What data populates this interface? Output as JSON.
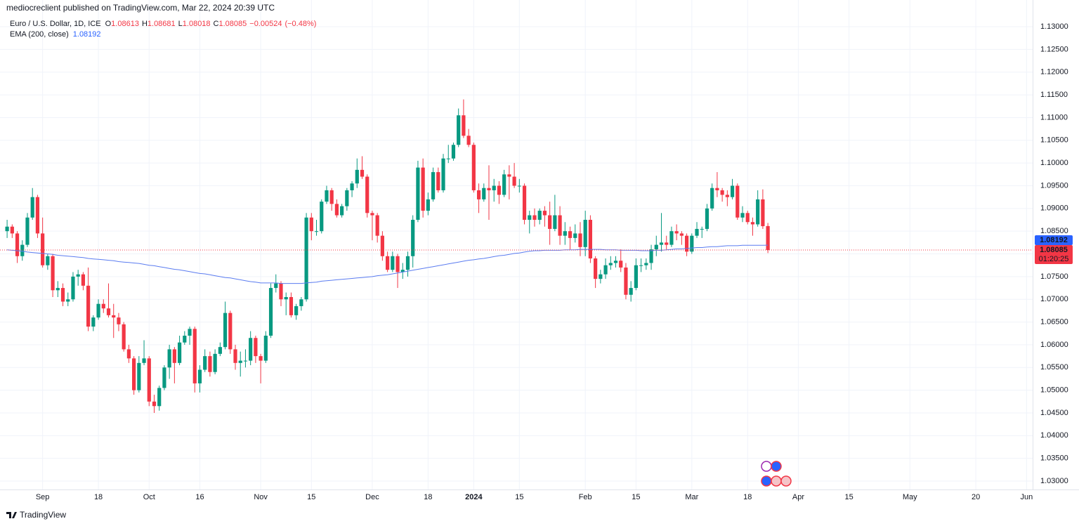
{
  "chart_data": {
    "type": "candlestick",
    "byline": "mediocreclient published on TradingView.com, Mar 22, 2024 20:39 UTC",
    "title": "Euro / U.S. Dollar, 1D, ICE",
    "ohlc_labels": [
      "O",
      "H",
      "L",
      "C"
    ],
    "change": {
      "value": -0.00524,
      "label": "−0.00524"
    },
    "change_percent": {
      "value": -0.48,
      "label": "(−0.48%)"
    },
    "up_color": "#089981",
    "down_color": "#f23645",
    "grid": true,
    "countdown": "01:20:25",
    "footer": "TradingView",
    "ylim": [
      1.02815,
      1.13588
    ],
    "yticks": [
      {
        "value": 1.03,
        "label": "1.03000"
      },
      {
        "value": 1.035,
        "label": "1.03500"
      },
      {
        "value": 1.04,
        "label": "1.04000"
      },
      {
        "value": 1.045,
        "label": "1.04500"
      },
      {
        "value": 1.05,
        "label": "1.05000"
      },
      {
        "value": 1.055,
        "label": "1.05500"
      },
      {
        "value": 1.06,
        "label": "1.06000"
      },
      {
        "value": 1.065,
        "label": "1.06500"
      },
      {
        "value": 1.07,
        "label": "1.07000"
      },
      {
        "value": 1.075,
        "label": "1.07500"
      },
      {
        "value": 1.08,
        "label": "1.08000"
      },
      {
        "value": 1.085,
        "label": "1.08500"
      },
      {
        "value": 1.09,
        "label": "1.09000"
      },
      {
        "value": 1.095,
        "label": "1.09500"
      },
      {
        "value": 1.1,
        "label": "1.10000"
      },
      {
        "value": 1.105,
        "label": "1.10500"
      },
      {
        "value": 1.11,
        "label": "1.11000"
      },
      {
        "value": 1.115,
        "label": "1.11500"
      },
      {
        "value": 1.12,
        "label": "1.12000"
      },
      {
        "value": 1.125,
        "label": "1.12500"
      },
      {
        "value": 1.13,
        "label": "1.13000"
      }
    ],
    "xlim": [
      -1.4,
      202.2
    ],
    "xticks": [
      {
        "value": 7,
        "label": "Sep"
      },
      {
        "value": 18,
        "label": "18"
      },
      {
        "value": 28,
        "label": "Oct"
      },
      {
        "value": 38,
        "label": "16"
      },
      {
        "value": 50,
        "label": "Nov"
      },
      {
        "value": 60,
        "label": "15"
      },
      {
        "value": 72,
        "label": "Dec"
      },
      {
        "value": 83,
        "label": "18"
      },
      {
        "value": 92,
        "label": "2024"
      },
      {
        "value": 101,
        "label": "15"
      },
      {
        "value": 114,
        "label": "Feb"
      },
      {
        "value": 124,
        "label": "15"
      },
      {
        "value": 135,
        "label": "Mar"
      },
      {
        "value": 146,
        "label": "18"
      },
      {
        "value": 156,
        "label": "Apr"
      },
      {
        "value": 166,
        "label": "15"
      },
      {
        "value": 178,
        "label": "May"
      },
      {
        "value": 191,
        "label": "20"
      },
      {
        "value": 201,
        "label": "Jun"
      }
    ],
    "candles": [
      [
        1.085,
        1.0875,
        1.0835,
        1.086
      ],
      [
        1.086,
        1.0865,
        1.0835,
        1.0845
      ],
      [
        1.0845,
        1.085,
        1.078,
        1.0795
      ],
      [
        1.0795,
        1.083,
        1.0785,
        1.082
      ],
      [
        1.082,
        1.089,
        1.0815,
        1.088
      ],
      [
        1.088,
        1.0945,
        1.0875,
        1.0925
      ],
      [
        1.0925,
        1.093,
        1.0835,
        1.0845
      ],
      [
        1.0845,
        1.088,
        1.077,
        1.0775
      ],
      [
        1.0775,
        1.08,
        1.0765,
        1.0795
      ],
      [
        1.0795,
        1.08,
        1.0705,
        1.072
      ],
      [
        1.072,
        1.074,
        1.0705,
        1.0725
      ],
      [
        1.0725,
        1.0735,
        1.0685,
        1.0695
      ],
      [
        1.0695,
        1.0715,
        1.0685,
        1.07
      ],
      [
        1.07,
        1.076,
        1.0695,
        1.075
      ],
      [
        1.075,
        1.0765,
        1.073,
        1.0755
      ],
      [
        1.0755,
        1.076,
        1.072,
        1.073
      ],
      [
        1.073,
        1.077,
        1.063,
        1.064
      ],
      [
        1.064,
        1.0665,
        1.063,
        1.066
      ],
      [
        1.066,
        1.07,
        1.0655,
        1.069
      ],
      [
        1.069,
        1.07,
        1.067,
        1.068
      ],
      [
        1.068,
        1.0735,
        1.066,
        1.0665
      ],
      [
        1.0665,
        1.069,
        1.0615,
        1.066
      ],
      [
        1.066,
        1.067,
        1.063,
        1.0645
      ],
      [
        1.0645,
        1.065,
        1.0585,
        1.059
      ],
      [
        1.059,
        1.06,
        1.056,
        1.057
      ],
      [
        1.057,
        1.0575,
        1.049,
        1.05
      ],
      [
        1.05,
        1.0575,
        1.0495,
        1.056
      ],
      [
        1.056,
        1.061,
        1.0555,
        1.057
      ],
      [
        1.057,
        1.0575,
        1.0465,
        1.0475
      ],
      [
        1.0475,
        1.049,
        1.045,
        1.0465
      ],
      [
        1.0465,
        1.051,
        1.0455,
        1.0505
      ],
      [
        1.0505,
        1.0555,
        1.05,
        1.055
      ],
      [
        1.055,
        1.06,
        1.0525,
        1.059
      ],
      [
        1.059,
        1.0595,
        1.0515,
        1.056
      ],
      [
        1.056,
        1.062,
        1.0555,
        1.0605
      ],
      [
        1.0605,
        1.063,
        1.06,
        1.062
      ],
      [
        1.062,
        1.064,
        1.06,
        1.0635
      ],
      [
        1.0635,
        1.064,
        1.0495,
        1.0515
      ],
      [
        1.0515,
        1.0555,
        1.0495,
        1.0545
      ],
      [
        1.0545,
        1.059,
        1.054,
        1.0575
      ],
      [
        1.0575,
        1.0585,
        1.053,
        1.054
      ],
      [
        1.054,
        1.059,
        1.0535,
        1.058
      ],
      [
        1.058,
        1.0605,
        1.0575,
        1.0595
      ],
      [
        1.0595,
        1.0695,
        1.059,
        1.067
      ],
      [
        1.067,
        1.0675,
        1.058,
        1.059
      ],
      [
        1.059,
        1.06,
        1.0545,
        1.056
      ],
      [
        1.056,
        1.0585,
        1.053,
        1.0565
      ],
      [
        1.0565,
        1.059,
        1.055,
        1.0565
      ],
      [
        1.0565,
        1.063,
        1.0555,
        1.0615
      ],
      [
        1.0615,
        1.062,
        1.056,
        1.0575
      ],
      [
        1.0575,
        1.058,
        1.0515,
        1.0565
      ],
      [
        1.0565,
        1.063,
        1.056,
        1.062
      ],
      [
        1.062,
        1.0735,
        1.0615,
        1.0725
      ],
      [
        1.0725,
        1.0755,
        1.0715,
        1.0735
      ],
      [
        1.0735,
        1.074,
        1.0685,
        1.07
      ],
      [
        1.07,
        1.0715,
        1.0665,
        1.0705
      ],
      [
        1.0705,
        1.0715,
        1.066,
        1.0665
      ],
      [
        1.0665,
        1.069,
        1.0655,
        1.0685
      ],
      [
        1.0685,
        1.0705,
        1.0675,
        1.07
      ],
      [
        1.07,
        1.089,
        1.0695,
        1.088
      ],
      [
        1.088,
        1.089,
        1.083,
        1.085
      ],
      [
        1.085,
        1.0875,
        1.084,
        1.085
      ],
      [
        1.085,
        1.092,
        1.0845,
        1.0915
      ],
      [
        1.0915,
        1.095,
        1.091,
        1.094
      ],
      [
        1.094,
        1.0945,
        1.0895,
        1.091
      ],
      [
        1.091,
        1.092,
        1.088,
        1.0885
      ],
      [
        1.0885,
        1.091,
        1.088,
        1.0905
      ],
      [
        1.0905,
        1.0945,
        1.0895,
        1.094
      ],
      [
        1.094,
        1.096,
        1.0925,
        1.0955
      ],
      [
        1.0955,
        1.101,
        1.0945,
        1.0985
      ],
      [
        1.0985,
        1.1015,
        1.0965,
        1.097
      ],
      [
        1.097,
        1.0975,
        1.088,
        1.089
      ],
      [
        1.089,
        1.0895,
        1.083,
        1.0885
      ],
      [
        1.0885,
        1.089,
        1.0825,
        1.084
      ],
      [
        1.084,
        1.085,
        1.0785,
        1.0795
      ],
      [
        1.0795,
        1.0805,
        1.076,
        1.0765
      ],
      [
        1.0765,
        1.0805,
        1.076,
        1.0795
      ],
      [
        1.0795,
        1.08,
        1.0725,
        1.076
      ],
      [
        1.076,
        1.078,
        1.0745,
        1.0765
      ],
      [
        1.0765,
        1.0805,
        1.075,
        1.0795
      ],
      [
        1.0795,
        1.0885,
        1.077,
        1.0875
      ],
      [
        1.0875,
        1.1005,
        1.087,
        1.099
      ],
      [
        1.099,
        1.101,
        1.088,
        1.0895
      ],
      [
        1.0895,
        1.0935,
        1.0885,
        1.092
      ],
      [
        1.092,
        1.099,
        1.0915,
        1.098
      ],
      [
        1.098,
        1.099,
        1.0935,
        1.094
      ],
      [
        1.094,
        1.102,
        1.0935,
        1.101
      ],
      [
        1.101,
        1.104,
        1.1,
        1.101
      ],
      [
        1.101,
        1.1045,
        1.1005,
        1.104
      ],
      [
        1.104,
        1.112,
        1.1035,
        1.1105
      ],
      [
        1.1105,
        1.114,
        1.1055,
        1.106
      ],
      [
        1.106,
        1.1075,
        1.1035,
        1.104
      ],
      [
        1.104,
        1.1045,
        1.0935,
        1.094
      ],
      [
        1.094,
        1.0955,
        1.089,
        1.092
      ],
      [
        1.092,
        1.0955,
        1.0915,
        1.0945
      ],
      [
        1.0945,
        1.0995,
        1.0875,
        1.094
      ],
      [
        1.094,
        1.0965,
        1.0915,
        1.095
      ],
      [
        1.095,
        1.096,
        1.091,
        1.093
      ],
      [
        1.093,
        1.0985,
        1.0925,
        1.0975
      ],
      [
        1.0975,
        1.0995,
        1.092,
        1.097
      ],
      [
        1.097,
        1.1,
        1.0945,
        1.095
      ],
      [
        1.095,
        1.0965,
        1.0935,
        1.095
      ],
      [
        1.095,
        1.0955,
        1.0865,
        1.0875
      ],
      [
        1.0875,
        1.0895,
        1.0845,
        1.0885
      ],
      [
        1.0885,
        1.09,
        1.086,
        1.0875
      ],
      [
        1.0875,
        1.09,
        1.0865,
        1.0895
      ],
      [
        1.0895,
        1.0905,
        1.086,
        1.0885
      ],
      [
        1.0885,
        1.0915,
        1.082,
        1.0855
      ],
      [
        1.0855,
        1.093,
        1.085,
        1.0885
      ],
      [
        1.0885,
        1.0905,
        1.082,
        1.084
      ],
      [
        1.084,
        1.087,
        1.082,
        1.085
      ],
      [
        1.085,
        1.086,
        1.081,
        1.0835
      ],
      [
        1.0835,
        1.0865,
        1.0825,
        1.0845
      ],
      [
        1.0845,
        1.087,
        1.0795,
        1.0815
      ],
      [
        1.0815,
        1.0895,
        1.0795,
        1.0875
      ],
      [
        1.0875,
        1.0885,
        1.078,
        1.079
      ],
      [
        1.079,
        1.0795,
        1.0725,
        1.0745
      ],
      [
        1.0745,
        1.0765,
        1.0735,
        1.0755
      ],
      [
        1.0755,
        1.079,
        1.0745,
        1.0775
      ],
      [
        1.0775,
        1.0795,
        1.0765,
        1.078
      ],
      [
        1.078,
        1.0795,
        1.077,
        1.0785
      ],
      [
        1.0785,
        1.081,
        1.076,
        1.077
      ],
      [
        1.077,
        1.078,
        1.07,
        1.071
      ],
      [
        1.071,
        1.074,
        1.0695,
        1.0725
      ],
      [
        1.0725,
        1.079,
        1.072,
        1.0775
      ],
      [
        1.0775,
        1.079,
        1.076,
        1.0775
      ],
      [
        1.0775,
        1.079,
        1.0765,
        1.078
      ],
      [
        1.078,
        1.082,
        1.0765,
        1.081
      ],
      [
        1.081,
        1.084,
        1.0795,
        1.082
      ],
      [
        1.082,
        1.089,
        1.0805,
        1.0825
      ],
      [
        1.0825,
        1.084,
        1.081,
        1.082
      ],
      [
        1.082,
        1.086,
        1.0815,
        1.085
      ],
      [
        1.085,
        1.0865,
        1.083,
        1.0845
      ],
      [
        1.0845,
        1.085,
        1.082,
        1.084
      ],
      [
        1.084,
        1.0845,
        1.0795,
        1.0805
      ],
      [
        1.0805,
        1.0845,
        1.08,
        1.084
      ],
      [
        1.084,
        1.087,
        1.0835,
        1.0855
      ],
      [
        1.0855,
        1.086,
        1.0835,
        1.0855
      ],
      [
        1.0855,
        1.091,
        1.085,
        1.09
      ],
      [
        1.09,
        1.0955,
        1.0895,
        1.0945
      ],
      [
        1.0945,
        1.098,
        1.0925,
        1.094
      ],
      [
        1.094,
        1.0945,
        1.0915,
        1.093
      ],
      [
        1.093,
        1.094,
        1.0905,
        1.0925
      ],
      [
        1.0925,
        1.0965,
        1.092,
        1.095
      ],
      [
        1.095,
        1.0955,
        1.0875,
        1.088
      ],
      [
        1.088,
        1.0905,
        1.087,
        1.089
      ],
      [
        1.089,
        1.0895,
        1.0865,
        1.087
      ],
      [
        1.087,
        1.088,
        1.084,
        1.0865
      ],
      [
        1.0865,
        1.094,
        1.086,
        1.092
      ],
      [
        1.092,
        1.0942,
        1.0855,
        1.0861
      ],
      [
        1.08613,
        1.08681,
        1.08018,
        1.08085
      ]
    ],
    "ema": {
      "name": "EMA (200, close)",
      "color": "#5b7cf0",
      "label_color": "#2962ff",
      "values": [
        1.0809,
        1.0808,
        1.0807,
        1.0806,
        1.0804,
        1.0803,
        1.0802,
        1.0801,
        1.08,
        1.0799,
        1.0797,
        1.0796,
        1.0795,
        1.0794,
        1.0793,
        1.0792,
        1.079,
        1.0789,
        1.0788,
        1.0787,
        1.0786,
        1.0785,
        1.0783,
        1.0782,
        1.0781,
        1.078,
        1.0779,
        1.0777,
        1.0775,
        1.0774,
        1.0772,
        1.077,
        1.0768,
        1.0766,
        1.0765,
        1.0763,
        1.0761,
        1.0759,
        1.0757,
        1.0756,
        1.0754,
        1.0752,
        1.075,
        1.0748,
        1.0747,
        1.0745,
        1.0743,
        1.0741,
        1.0739,
        1.0738,
        1.0736,
        1.0736,
        1.0736,
        1.0736,
        1.0735,
        1.0735,
        1.0735,
        1.0735,
        1.0735,
        1.0736,
        1.0737,
        1.0738,
        1.074,
        1.0741,
        1.0742,
        1.0743,
        1.0744,
        1.0745,
        1.0746,
        1.0747,
        1.0748,
        1.0749,
        1.075,
        1.0752,
        1.0753,
        1.0754,
        1.0756,
        1.0758,
        1.076,
        1.0762,
        1.0764,
        1.0766,
        1.0768,
        1.077,
        1.0772,
        1.0774,
        1.0776,
        1.0778,
        1.078,
        1.0782,
        1.0784,
        1.0786,
        1.0787,
        1.0789,
        1.079,
        1.0792,
        1.0794,
        1.0796,
        1.0797,
        1.0799,
        1.0801,
        1.0802,
        1.0804,
        1.0806,
        1.0807,
        1.0807,
        1.0808,
        1.0808,
        1.0808,
        1.0808,
        1.0809,
        1.0809,
        1.0809,
        1.081,
        1.081,
        1.081,
        1.081,
        1.081,
        1.0809,
        1.0809,
        1.0809,
        1.0808,
        1.0808,
        1.0808,
        1.0808,
        1.0807,
        1.0807,
        1.0807,
        1.0808,
        1.0808,
        1.0809,
        1.081,
        1.0811,
        1.0811,
        1.0812,
        1.0813,
        1.0814,
        1.0814,
        1.0815,
        1.0816,
        1.0816,
        1.0817,
        1.0818,
        1.0818,
        1.0818,
        1.0819,
        1.0819,
        1.0819,
        1.0819,
        1.0819,
        1.08192
      ]
    }
  }
}
